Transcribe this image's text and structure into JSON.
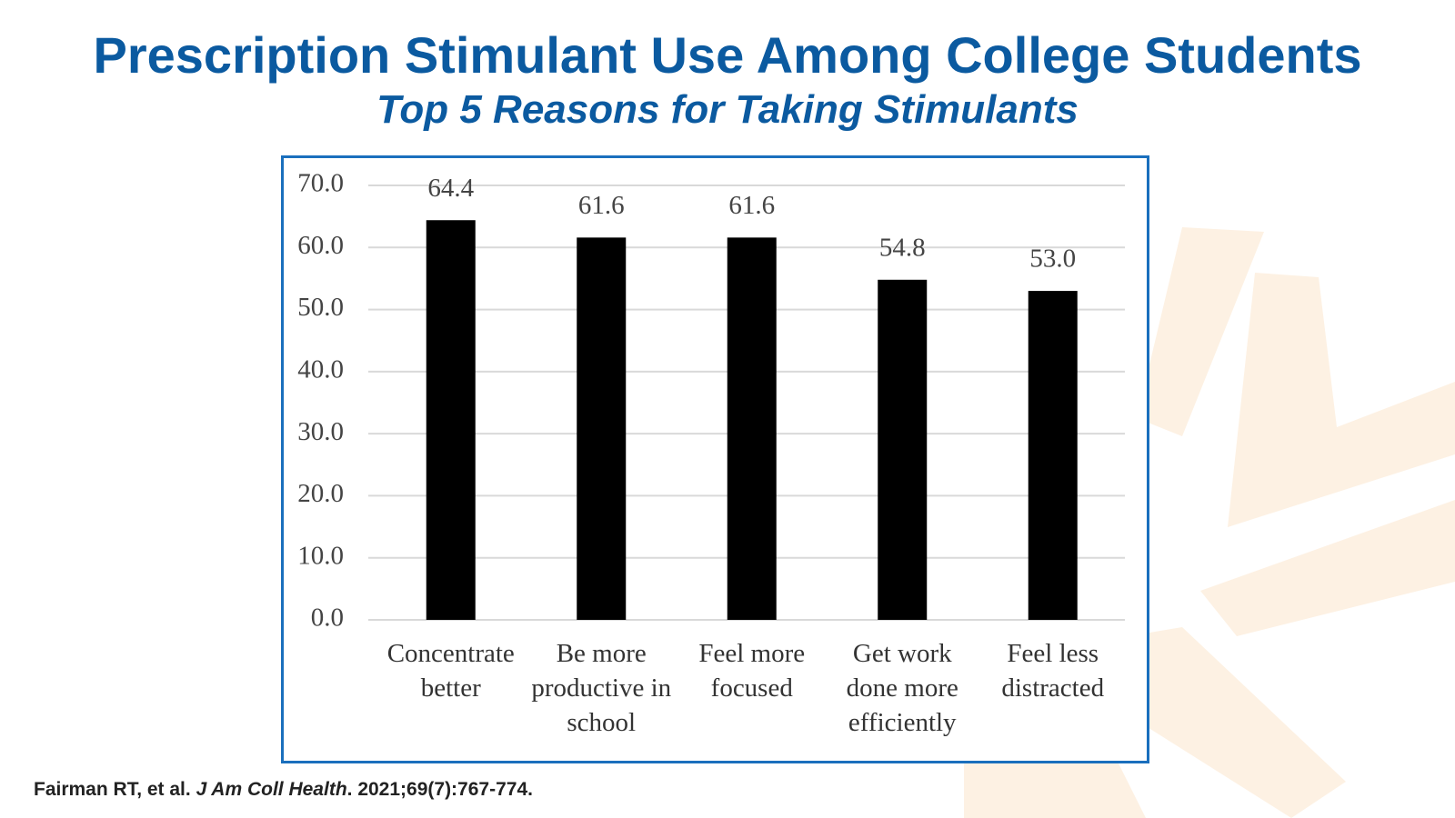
{
  "title": "Prescription Stimulant Use Among College Students",
  "subtitle": "Top 5 Reasons for Taking Stimulants",
  "citation": {
    "authors": "Fairman RT, et al. ",
    "journal": "J Am Coll Health",
    "details": ". 2021;69(7):767-774."
  },
  "chart_data": {
    "type": "bar",
    "categories": [
      "Concentrate better",
      "Be more productive in school",
      "Feel more focused",
      "Get work done more efficiently",
      "Feel less distracted"
    ],
    "values": [
      64.4,
      61.6,
      61.6,
      54.8,
      53.0
    ],
    "value_labels": [
      "64.4",
      "61.6",
      "61.6",
      "54.8",
      "53.0"
    ],
    "color": "#000000",
    "ylim": [
      0,
      70
    ],
    "yticks": [
      {
        "value": 0,
        "label": "0.0"
      },
      {
        "value": 10,
        "label": "10.0"
      },
      {
        "value": 20,
        "label": "20.0"
      },
      {
        "value": 30,
        "label": "30.0"
      },
      {
        "value": 40,
        "label": "40.0"
      },
      {
        "value": 50,
        "label": "50.0"
      },
      {
        "value": 60,
        "label": "60.0"
      },
      {
        "value": 70,
        "label": "70.0"
      }
    ],
    "grid": true
  }
}
